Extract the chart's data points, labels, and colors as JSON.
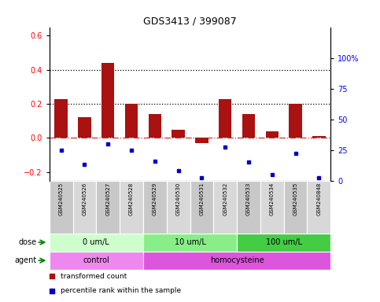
{
  "title": "GDS3413 / 399087",
  "samples": [
    "GSM240525",
    "GSM240526",
    "GSM240527",
    "GSM240528",
    "GSM240529",
    "GSM240530",
    "GSM240531",
    "GSM240532",
    "GSM240533",
    "GSM240534",
    "GSM240535",
    "GSM240848"
  ],
  "transformed_count": [
    0.23,
    0.12,
    0.44,
    0.2,
    0.14,
    0.05,
    -0.03,
    0.23,
    0.14,
    0.04,
    0.2,
    0.01
  ],
  "percentile_rank": [
    25,
    13,
    30,
    25,
    16,
    8,
    2,
    27,
    15,
    5,
    22,
    2
  ],
  "dose_groups": [
    {
      "label": "0 um/L",
      "start": 0,
      "end": 4,
      "color": "#CCFFCC"
    },
    {
      "label": "10 um/L",
      "start": 4,
      "end": 8,
      "color": "#88EE88"
    },
    {
      "label": "100 um/L",
      "start": 8,
      "end": 12,
      "color": "#44CC44"
    }
  ],
  "agent_groups": [
    {
      "label": "control",
      "start": 0,
      "end": 4,
      "color": "#EE88EE"
    },
    {
      "label": "homocysteine",
      "start": 4,
      "end": 12,
      "color": "#DD55DD"
    }
  ],
  "bar_color_red": "#AA1111",
  "bar_color_blue": "#0000CC",
  "ylim_left": [
    -0.25,
    0.65
  ],
  "ylim_right": [
    0,
    125
  ],
  "yticks_left": [
    -0.2,
    0.0,
    0.2,
    0.4,
    0.6
  ],
  "yticks_right": [
    0,
    25,
    50,
    75,
    100
  ],
  "hline_dotted": [
    0.2,
    0.4
  ],
  "hline_dash_dot_color": "#CC3333",
  "legend_items": [
    {
      "label": "transformed count",
      "color": "#AA1111"
    },
    {
      "label": "percentile rank within the sample",
      "color": "#0000CC"
    }
  ]
}
